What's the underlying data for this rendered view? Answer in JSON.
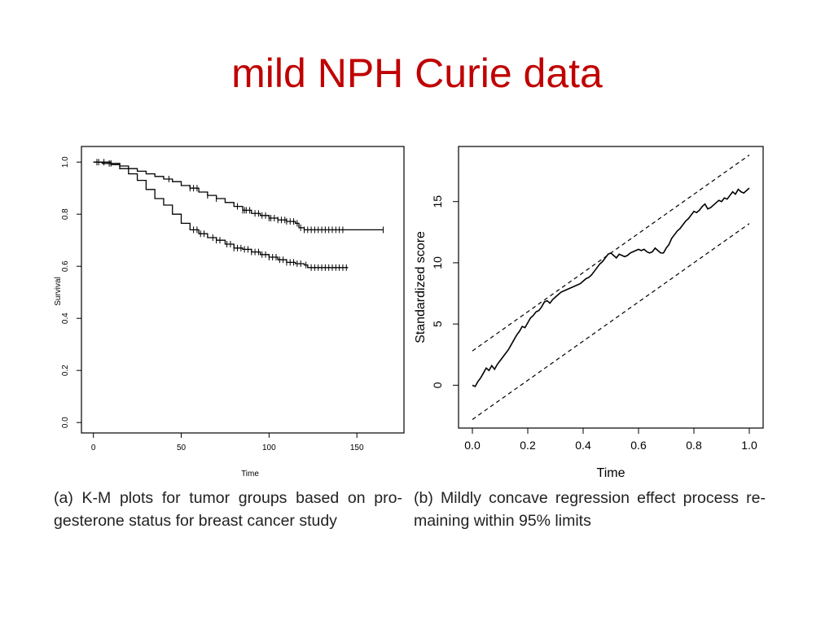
{
  "slide": {
    "title": "mild NPH Curie data",
    "captions": [
      "(a) K-M plots for tumor groups based on pro- gesterone status for breast cancer study",
      "(b) Mildly concave regression effect process re- maining within 95% limits"
    ]
  },
  "chart_data": [
    {
      "type": "line",
      "title": "",
      "xlabel": "Time",
      "ylabel": "Survival",
      "xlim": [
        0,
        170
      ],
      "ylim": [
        0,
        1.02
      ],
      "xticks": [
        0,
        50,
        100,
        150
      ],
      "yticks": [
        0.0,
        0.2,
        0.4,
        0.6,
        0.8,
        1.0
      ],
      "xtick_labels": [
        "0",
        "50",
        "100",
        "150"
      ],
      "ytick_labels": [
        "0.0",
        "0.2",
        "0.4",
        "0.6",
        "0.8",
        "1.0"
      ],
      "grid": false,
      "legend": "none",
      "series": [
        {
          "points": [
            [
              0,
              1.0
            ],
            [
              5,
              1.0
            ],
            [
              10,
              0.995
            ],
            [
              15,
              0.985
            ],
            [
              20,
              0.975
            ],
            [
              25,
              0.965
            ],
            [
              30,
              0.955
            ],
            [
              35,
              0.945
            ],
            [
              40,
              0.935
            ],
            [
              45,
              0.925
            ],
            [
              50,
              0.91
            ],
            [
              55,
              0.9
            ],
            [
              60,
              0.885
            ],
            [
              65,
              0.872
            ],
            [
              70,
              0.86
            ],
            [
              75,
              0.845
            ],
            [
              80,
              0.83
            ],
            [
              85,
              0.815
            ],
            [
              90,
              0.803
            ],
            [
              95,
              0.795
            ],
            [
              100,
              0.785
            ],
            [
              105,
              0.778
            ],
            [
              110,
              0.772
            ],
            [
              115,
              0.765
            ],
            [
              117,
              0.748
            ],
            [
              120,
              0.74
            ],
            [
              130,
              0.74
            ],
            [
              140,
              0.74
            ],
            [
              145,
              0.74
            ],
            [
              165,
              0.74
            ]
          ],
          "censor_times": [
            2,
            6,
            10,
            15,
            43,
            55,
            57,
            59,
            65,
            70,
            82,
            85,
            86,
            87,
            89,
            92,
            94,
            96,
            98,
            100,
            101,
            103,
            105,
            107,
            109,
            110,
            112,
            114,
            116,
            118,
            120,
            122,
            124,
            126,
            128,
            130,
            132,
            134,
            136,
            138,
            140,
            142,
            165
          ]
        },
        {
          "points": [
            [
              0,
              1.0
            ],
            [
              5,
              0.995
            ],
            [
              10,
              0.99
            ],
            [
              15,
              0.975
            ],
            [
              20,
              0.955
            ],
            [
              25,
              0.93
            ],
            [
              30,
              0.895
            ],
            [
              35,
              0.86
            ],
            [
              40,
              0.835
            ],
            [
              45,
              0.8
            ],
            [
              50,
              0.765
            ],
            [
              55,
              0.74
            ],
            [
              60,
              0.725
            ],
            [
              65,
              0.71
            ],
            [
              70,
              0.7
            ],
            [
              75,
              0.685
            ],
            [
              80,
              0.67
            ],
            [
              85,
              0.665
            ],
            [
              90,
              0.655
            ],
            [
              95,
              0.645
            ],
            [
              100,
              0.635
            ],
            [
              105,
              0.625
            ],
            [
              110,
              0.615
            ],
            [
              115,
              0.61
            ],
            [
              120,
              0.605
            ],
            [
              122,
              0.595
            ],
            [
              130,
              0.595
            ],
            [
              140,
              0.595
            ],
            [
              145,
              0.595
            ]
          ],
          "censor_times": [
            3,
            9,
            57,
            59,
            61,
            63,
            68,
            70,
            72,
            76,
            78,
            80,
            82,
            84,
            86,
            88,
            90,
            92,
            94,
            96,
            98,
            100,
            102,
            104,
            106,
            108,
            110,
            112,
            114,
            116,
            118,
            121,
            124,
            126,
            128,
            130,
            132,
            134,
            136,
            138,
            140,
            142,
            144
          ]
        }
      ]
    },
    {
      "type": "line",
      "title": "",
      "xlabel": "Time",
      "ylabel": "Standardized score",
      "xlim": [
        -0.05,
        1.05
      ],
      "ylim": [
        -3.5,
        19.5
      ],
      "xticks": [
        0.0,
        0.2,
        0.4,
        0.6,
        0.8,
        1.0
      ],
      "yticks": [
        0,
        5,
        10,
        15
      ],
      "xtick_labels": [
        "0.0",
        "0.2",
        "0.4",
        "0.6",
        "0.8",
        "1.0"
      ],
      "ytick_labels": [
        "0",
        "5",
        "10",
        "15"
      ],
      "grid": false,
      "legend": "none",
      "series": [
        {
          "style": "solid",
          "points": [
            [
              0.0,
              0.0
            ],
            [
              0.01,
              -0.1
            ],
            [
              0.02,
              0.3
            ],
            [
              0.03,
              0.6
            ],
            [
              0.04,
              1.0
            ],
            [
              0.05,
              1.4
            ],
            [
              0.06,
              1.2
            ],
            [
              0.07,
              1.6
            ],
            [
              0.08,
              1.3
            ],
            [
              0.09,
              1.7
            ],
            [
              0.1,
              2.0
            ],
            [
              0.11,
              2.3
            ],
            [
              0.12,
              2.6
            ],
            [
              0.13,
              2.9
            ],
            [
              0.14,
              3.3
            ],
            [
              0.15,
              3.7
            ],
            [
              0.16,
              4.1
            ],
            [
              0.17,
              4.4
            ],
            [
              0.18,
              4.8
            ],
            [
              0.19,
              4.7
            ],
            [
              0.2,
              5.1
            ],
            [
              0.21,
              5.5
            ],
            [
              0.22,
              5.7
            ],
            [
              0.23,
              6.0
            ],
            [
              0.24,
              6.1
            ],
            [
              0.25,
              6.4
            ],
            [
              0.26,
              6.8
            ],
            [
              0.27,
              6.9
            ],
            [
              0.28,
              6.7
            ],
            [
              0.29,
              7.0
            ],
            [
              0.3,
              7.2
            ],
            [
              0.31,
              7.4
            ],
            [
              0.32,
              7.6
            ],
            [
              0.33,
              7.7
            ],
            [
              0.34,
              7.8
            ],
            [
              0.35,
              7.9
            ],
            [
              0.36,
              8.0
            ],
            [
              0.37,
              8.1
            ],
            [
              0.38,
              8.2
            ],
            [
              0.39,
              8.3
            ],
            [
              0.4,
              8.5
            ],
            [
              0.41,
              8.7
            ],
            [
              0.42,
              8.8
            ],
            [
              0.43,
              9.0
            ],
            [
              0.44,
              9.3
            ],
            [
              0.45,
              9.6
            ],
            [
              0.46,
              9.9
            ],
            [
              0.47,
              10.1
            ],
            [
              0.48,
              10.4
            ],
            [
              0.49,
              10.7
            ],
            [
              0.5,
              10.8
            ],
            [
              0.51,
              10.6
            ],
            [
              0.52,
              10.4
            ],
            [
              0.53,
              10.7
            ],
            [
              0.54,
              10.6
            ],
            [
              0.55,
              10.5
            ],
            [
              0.56,
              10.6
            ],
            [
              0.57,
              10.8
            ],
            [
              0.58,
              10.9
            ],
            [
              0.59,
              11.0
            ],
            [
              0.6,
              11.1
            ],
            [
              0.61,
              11.0
            ],
            [
              0.62,
              11.1
            ],
            [
              0.63,
              10.9
            ],
            [
              0.64,
              10.8
            ],
            [
              0.65,
              10.9
            ],
            [
              0.66,
              11.2
            ],
            [
              0.67,
              11.0
            ],
            [
              0.68,
              10.8
            ],
            [
              0.69,
              10.8
            ],
            [
              0.7,
              11.2
            ],
            [
              0.71,
              11.5
            ],
            [
              0.72,
              12.0
            ],
            [
              0.73,
              12.3
            ],
            [
              0.74,
              12.6
            ],
            [
              0.75,
              12.8
            ],
            [
              0.76,
              13.1
            ],
            [
              0.77,
              13.4
            ],
            [
              0.78,
              13.6
            ],
            [
              0.79,
              13.9
            ],
            [
              0.8,
              14.2
            ],
            [
              0.81,
              14.1
            ],
            [
              0.82,
              14.3
            ],
            [
              0.83,
              14.6
            ],
            [
              0.84,
              14.8
            ],
            [
              0.85,
              14.4
            ],
            [
              0.86,
              14.5
            ],
            [
              0.87,
              14.7
            ],
            [
              0.88,
              14.9
            ],
            [
              0.89,
              15.1
            ],
            [
              0.9,
              15.0
            ],
            [
              0.91,
              15.3
            ],
            [
              0.92,
              15.2
            ],
            [
              0.93,
              15.5
            ],
            [
              0.94,
              15.8
            ],
            [
              0.95,
              15.6
            ],
            [
              0.96,
              16.0
            ],
            [
              0.97,
              15.8
            ],
            [
              0.98,
              15.7
            ],
            [
              0.99,
              15.9
            ],
            [
              1.0,
              16.1
            ]
          ]
        },
        {
          "style": "dashed",
          "points": [
            [
              0.0,
              2.8
            ],
            [
              1.0,
              18.8
            ]
          ]
        },
        {
          "style": "dashed",
          "points": [
            [
              0.0,
              -2.8
            ],
            [
              1.0,
              13.2
            ]
          ]
        }
      ]
    }
  ]
}
